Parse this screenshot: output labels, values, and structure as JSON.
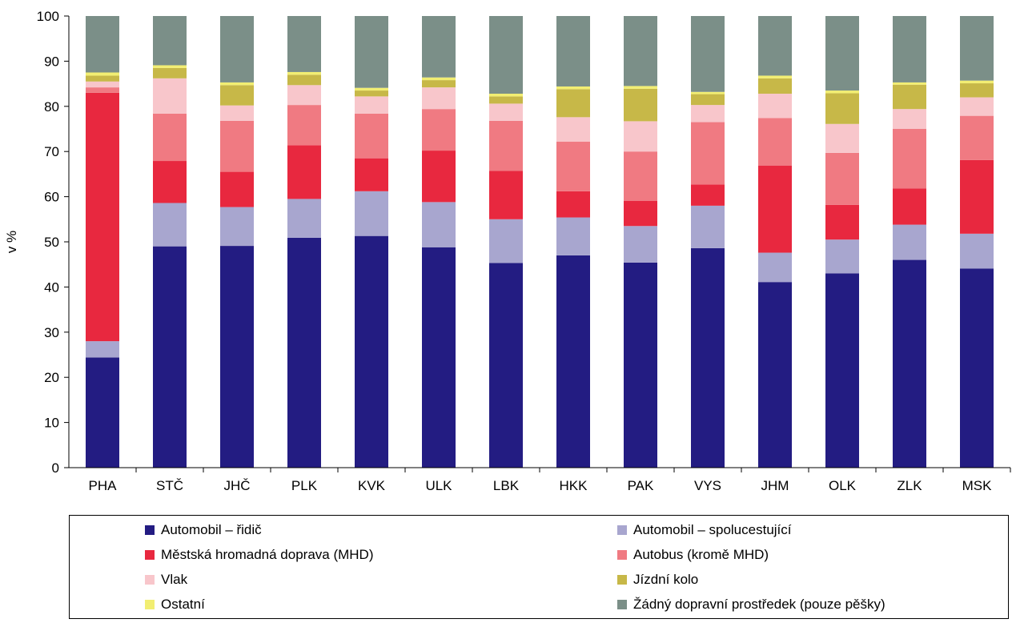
{
  "chart_data": {
    "type": "bar",
    "stacked": true,
    "ylabel": "v %",
    "ylim": [
      0,
      100
    ],
    "yticks": [
      0,
      10,
      20,
      30,
      40,
      50,
      60,
      70,
      80,
      90,
      100
    ],
    "grid": false,
    "legend_position": "bottom",
    "categories": [
      "PHA",
      "STČ",
      "JHČ",
      "PLK",
      "KVK",
      "ULK",
      "LBK",
      "HKK",
      "PAK",
      "VYS",
      "JHM",
      "OLK",
      "ZLK",
      "MSK"
    ],
    "series": [
      {
        "name": "Automobil – řidič",
        "color": "#231C82",
        "values": [
          24.4,
          49.0,
          49.1,
          50.9,
          51.3,
          48.8,
          45.3,
          47.0,
          45.4,
          48.6,
          41.1,
          43.0,
          46.0,
          44.1
        ]
      },
      {
        "name": "Automobil – spolucestující",
        "color": "#A8A6CF",
        "values": [
          3.6,
          9.6,
          8.6,
          8.6,
          9.9,
          10.0,
          9.7,
          8.4,
          8.1,
          9.4,
          6.5,
          7.5,
          7.8,
          7.7
        ]
      },
      {
        "name": "Městská hromadná doprava (MHD)",
        "color": "#E8283F",
        "values": [
          55.0,
          9.3,
          7.8,
          11.9,
          7.3,
          11.4,
          10.7,
          5.8,
          5.6,
          4.7,
          19.3,
          7.7,
          8.0,
          16.3
        ]
      },
      {
        "name": "Autobus (kromě MHD)",
        "color": "#F07A82",
        "values": [
          1.2,
          10.5,
          11.3,
          8.9,
          9.9,
          9.2,
          11.1,
          11.0,
          10.9,
          13.8,
          10.5,
          11.5,
          13.2,
          9.8
        ]
      },
      {
        "name": "Vlak",
        "color": "#F8C6CB",
        "values": [
          1.3,
          7.8,
          3.4,
          4.4,
          3.8,
          4.8,
          3.8,
          5.4,
          6.7,
          3.8,
          5.4,
          6.4,
          4.4,
          4.1
        ]
      },
      {
        "name": "Jízdní kolo",
        "color": "#C7B848",
        "values": [
          1.3,
          2.3,
          4.5,
          2.3,
          1.3,
          1.6,
          1.6,
          6.2,
          7.2,
          2.4,
          3.4,
          6.8,
          5.4,
          3.1
        ]
      },
      {
        "name": "Ostatní",
        "color": "#F2EE72",
        "values": [
          0.7,
          0.6,
          0.6,
          0.6,
          0.6,
          0.6,
          0.6,
          0.6,
          0.6,
          0.5,
          0.6,
          0.6,
          0.5,
          0.6
        ]
      },
      {
        "name": "Žádný dopravní prostředek (pouze pěšky)",
        "color": "#7B8F88",
        "values": [
          12.5,
          10.9,
          14.7,
          12.4,
          15.9,
          13.6,
          17.2,
          15.6,
          15.5,
          16.8,
          13.2,
          16.5,
          14.7,
          14.3
        ]
      }
    ]
  }
}
